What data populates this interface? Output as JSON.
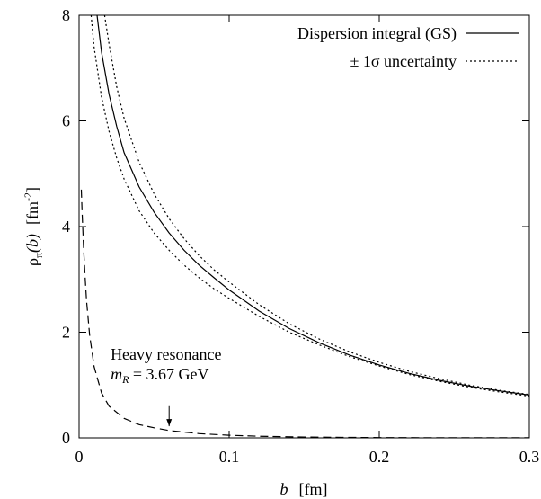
{
  "chart_data": {
    "type": "line",
    "xlabel": {
      "main": "b",
      "unit": "[fm]"
    },
    "ylabel": {
      "rho": "ρ",
      "sub": "π",
      "arg": "(b)",
      "unit_pre": "[fm",
      "unit_sup": "-2",
      "unit_post": "]"
    },
    "xlim": [
      0,
      0.3
    ],
    "ylim": [
      0,
      8
    ],
    "x_ticks": [
      0,
      0.1,
      0.2,
      0.3
    ],
    "x_tick_labels": [
      "0",
      "0.1",
      "0.2",
      "0.3"
    ],
    "y_ticks": [
      0,
      2,
      4,
      6,
      8
    ],
    "y_tick_labels": [
      "0",
      "2",
      "4",
      "6",
      "8"
    ],
    "grid": false,
    "legend_position": "top-right",
    "series": [
      {
        "name": "Dispersion integral (GS)",
        "style": "solid",
        "x": [
          0.012,
          0.015,
          0.02,
          0.025,
          0.03,
          0.04,
          0.05,
          0.06,
          0.07,
          0.08,
          0.09,
          0.1,
          0.12,
          0.14,
          0.16,
          0.18,
          0.2,
          0.22,
          0.24,
          0.26,
          0.28,
          0.3
        ],
        "y": [
          8.0,
          7.3,
          6.5,
          5.9,
          5.4,
          4.75,
          4.27,
          3.88,
          3.55,
          3.27,
          3.03,
          2.8,
          2.4,
          2.07,
          1.8,
          1.57,
          1.38,
          1.22,
          1.09,
          0.98,
          0.89,
          0.81
        ]
      },
      {
        "name": "± 1σ uncertainty",
        "style": "dotted",
        "x": [
          0.017,
          0.02,
          0.025,
          0.03,
          0.04,
          0.05,
          0.06,
          0.07,
          0.08,
          0.09,
          0.1,
          0.12,
          0.14,
          0.16,
          0.18,
          0.2,
          0.22,
          0.24,
          0.26,
          0.28,
          0.3
        ],
        "y": [
          8.0,
          7.45,
          6.65,
          6.05,
          5.22,
          4.62,
          4.15,
          3.77,
          3.45,
          3.18,
          2.95,
          2.52,
          2.16,
          1.87,
          1.63,
          1.43,
          1.26,
          1.12,
          1.0,
          0.9,
          0.82
        ]
      },
      {
        "name": "",
        "style": "dotted",
        "x": [
          0.008,
          0.01,
          0.015,
          0.02,
          0.025,
          0.03,
          0.04,
          0.05,
          0.06,
          0.07,
          0.08,
          0.09,
          0.1,
          0.12,
          0.14,
          0.16,
          0.18,
          0.2,
          0.22,
          0.24,
          0.26,
          0.28,
          0.3
        ],
        "y": [
          8.0,
          7.4,
          6.45,
          5.8,
          5.3,
          4.9,
          4.3,
          3.88,
          3.55,
          3.27,
          3.03,
          2.82,
          2.64,
          2.3,
          2.0,
          1.76,
          1.54,
          1.36,
          1.2,
          1.07,
          0.96,
          0.87,
          0.79
        ]
      },
      {
        "name": "",
        "style": "dashed",
        "x": [
          0.0015,
          0.002,
          0.003,
          0.004,
          0.005,
          0.007,
          0.01,
          0.015,
          0.02,
          0.03,
          0.04,
          0.05,
          0.06,
          0.08,
          0.1,
          0.12,
          0.15,
          0.2,
          0.25,
          0.3
        ],
        "y": [
          4.7,
          4.3,
          3.6,
          3.05,
          2.6,
          1.95,
          1.35,
          0.85,
          0.6,
          0.37,
          0.25,
          0.19,
          0.14,
          0.08,
          0.05,
          0.03,
          0.015,
          0.005,
          0.002,
          0.001
        ]
      }
    ],
    "annotation": {
      "line1": "Heavy resonance",
      "line2_var": "m",
      "line2_sub": "R",
      "line2_value": " = 3.67 GeV",
      "text_at": [
        0.021,
        1.48
      ],
      "arrow_from": [
        0.06,
        0.6
      ],
      "arrow_to": [
        0.06,
        0.22
      ]
    }
  }
}
